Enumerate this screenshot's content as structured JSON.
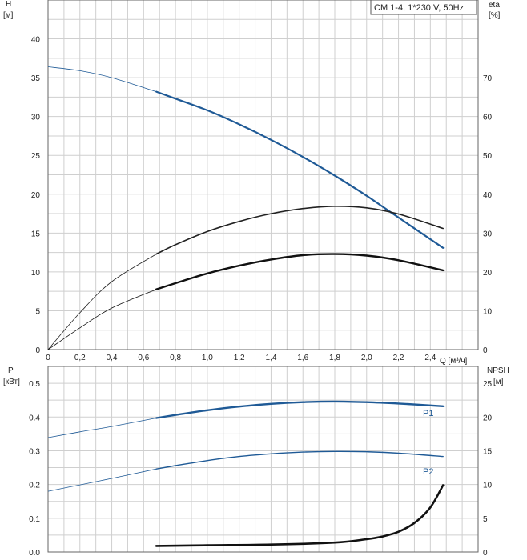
{
  "chart_data": [
    {
      "type": "line",
      "legend": "CM 1-4, 1*230 V, 50Hz",
      "xlabel": "Q [м³/ч]",
      "ylabel": "H",
      "ylabel_unit": "[м]",
      "ylabel2": "eta",
      "ylabel2_unit": "[%]",
      "xlim": [
        0,
        2.7
      ],
      "ylim": [
        0,
        45
      ],
      "ylim2": [
        0,
        90
      ],
      "x_ticks": [
        "0",
        "0,2",
        "0,4",
        "0,6",
        "0,8",
        "1,0",
        "1,2",
        "1,4",
        "1,6",
        "1,8",
        "2,0",
        "2,2",
        "2,4"
      ],
      "y_ticks": [
        "0",
        "5",
        "10",
        "15",
        "20",
        "25",
        "30",
        "35",
        "40"
      ],
      "y2_ticks": [
        "0",
        "10",
        "20",
        "30",
        "40",
        "50",
        "60",
        "70"
      ],
      "grid": true,
      "series": [
        {
          "axis": "left",
          "color": "#1f5a96",
          "x": [
            0,
            0.2,
            0.4,
            0.68,
            0.8,
            1.0,
            1.2,
            1.4,
            1.6,
            1.8,
            2.0,
            2.2,
            2.48
          ],
          "y": [
            36.4,
            35.9,
            35.0,
            33.2,
            32.3,
            30.8,
            29.0,
            27.0,
            24.8,
            22.4,
            19.8,
            17.0,
            13.1
          ],
          "operating_range": [
            0.68,
            2.48
          ]
        },
        {
          "axis": "right",
          "color": "#222222",
          "x": [
            0,
            0.2,
            0.4,
            0.68,
            0.8,
            1.0,
            1.2,
            1.4,
            1.6,
            1.8,
            2.0,
            2.2,
            2.48
          ],
          "y": [
            0,
            9.5,
            17.5,
            24.6,
            27.0,
            30.4,
            33.0,
            35.0,
            36.3,
            36.9,
            36.5,
            34.9,
            31.2
          ],
          "operating_range": [
            0.68,
            2.48
          ]
        },
        {
          "axis": "right",
          "color": "#111111",
          "x": [
            0,
            0.2,
            0.4,
            0.68,
            0.8,
            1.0,
            1.2,
            1.4,
            1.6,
            1.8,
            2.0,
            2.2,
            2.48
          ],
          "y": [
            0,
            5.6,
            10.7,
            15.5,
            17.1,
            19.6,
            21.6,
            23.2,
            24.3,
            24.6,
            24.2,
            23.0,
            20.4
          ],
          "operating_range": [
            0.68,
            2.48
          ]
        }
      ]
    },
    {
      "type": "line",
      "xlim": [
        0,
        2.7
      ],
      "ylim": [
        0,
        0.55
      ],
      "ylim2": [
        0,
        27.5
      ],
      "ylabel": "P",
      "ylabel_unit": "[кВт]",
      "ylabel2": "NPSH",
      "ylabel2_unit": "[м]",
      "y_ticks": [
        "0.0",
        "0.1",
        "0.2",
        "0.3",
        "0.4",
        "0.5"
      ],
      "y2_ticks": [
        "0",
        "5",
        "10",
        "15",
        "20",
        "25"
      ],
      "grid": true,
      "series": [
        {
          "name": "P1",
          "axis": "left",
          "color": "#1f5a96",
          "x": [
            0,
            0.2,
            0.4,
            0.68,
            0.8,
            1.0,
            1.2,
            1.4,
            1.6,
            1.8,
            2.0,
            2.2,
            2.48
          ],
          "y": [
            0.339,
            0.356,
            0.372,
            0.397,
            0.406,
            0.42,
            0.431,
            0.439,
            0.444,
            0.446,
            0.444,
            0.44,
            0.432
          ],
          "operating_range": [
            0.68,
            2.48
          ]
        },
        {
          "name": "P2",
          "axis": "left",
          "color": "#1f5a96",
          "x": [
            0,
            0.2,
            0.4,
            0.68,
            0.8,
            1.0,
            1.2,
            1.4,
            1.6,
            1.8,
            2.0,
            2.2,
            2.48
          ],
          "y": [
            0.18,
            0.199,
            0.218,
            0.246,
            0.256,
            0.271,
            0.283,
            0.291,
            0.296,
            0.298,
            0.297,
            0.293,
            0.283
          ],
          "operating_range": [
            0.68,
            2.48
          ]
        },
        {
          "axis": "right",
          "color": "#111111",
          "x": [
            0,
            0.68,
            1.0,
            1.4,
            1.8,
            2.0,
            2.1,
            2.2,
            2.3,
            2.4,
            2.48
          ],
          "y": [
            0.9,
            0.9,
            1.0,
            1.1,
            1.4,
            1.9,
            2.3,
            3.0,
            4.3,
            6.6,
            9.9
          ],
          "operating_range": [
            0.68,
            2.48
          ]
        }
      ]
    }
  ]
}
